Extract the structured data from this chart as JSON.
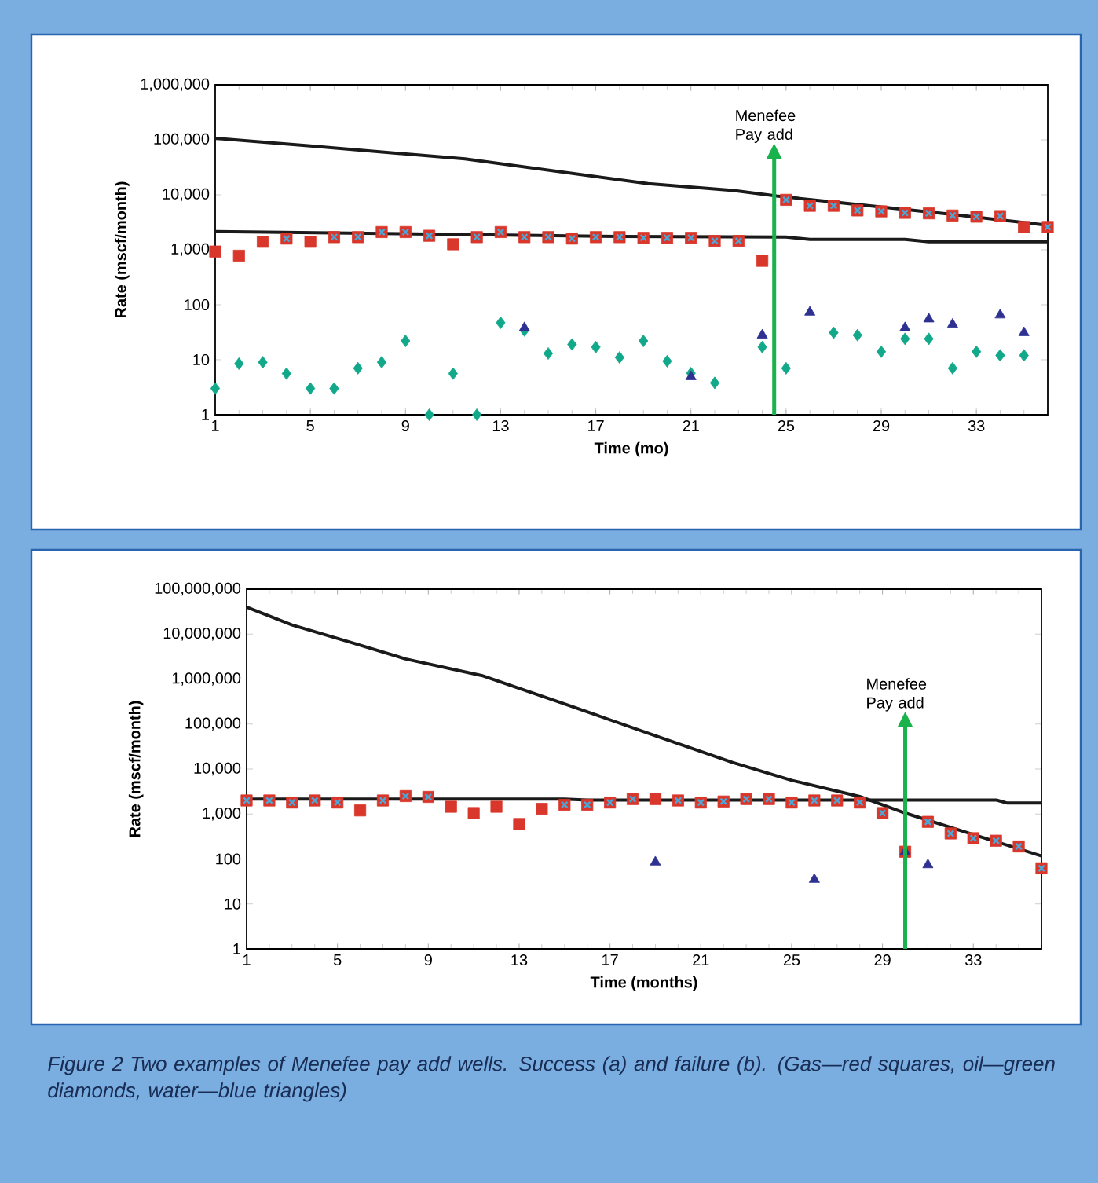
{
  "chart_data": [
    {
      "type": "scatter",
      "xlabel": "Time (mo)",
      "ylabel": "Rate (mscf/month)",
      "log": "y",
      "x": [
        1,
        2,
        3,
        4,
        5,
        6,
        7,
        8,
        9,
        10,
        11,
        12,
        13,
        14,
        15,
        16,
        17,
        18,
        19,
        20,
        21,
        22,
        23,
        24,
        25,
        26,
        27,
        28,
        29,
        30,
        31,
        32,
        33,
        34,
        35,
        36
      ],
      "xlim": [
        1,
        36
      ],
      "xticks": [
        1,
        5,
        9,
        13,
        17,
        21,
        25,
        29,
        33
      ],
      "ylim": [
        1,
        1000000
      ],
      "yticks": [
        1,
        10,
        100,
        {
          "value": 1000,
          "label": "1,000"
        },
        {
          "value": 10000,
          "label": "10,000"
        },
        {
          "value": 100000,
          "label": "100,000"
        },
        {
          "value": 1000000,
          "label": "1,000,000"
        }
      ],
      "series": [
        {
          "type": "line",
          "marker": "none",
          "color": "#1a1a1a",
          "x": [
            1,
            4.9,
            11.5,
            19.2,
            22.8,
            24.6,
            32,
            36
          ],
          "values": [
            107000,
            78000,
            45000,
            16000,
            12000,
            9500,
            4400,
            2800
          ]
        },
        {
          "type": "line",
          "marker": "none",
          "color": "#1a1a1a",
          "x": [
            1,
            18,
            25,
            26,
            30,
            31,
            36
          ],
          "values": [
            2150,
            1750,
            1700,
            1550,
            1550,
            1400,
            1400
          ]
        },
        {
          "marker": "square",
          "color": "#d9372b",
          "values": [
            930,
            780,
            1400,
            1600,
            1400,
            1700,
            1700,
            2100,
            2100,
            1800,
            1260,
            1700,
            2100,
            1700,
            1700,
            1600,
            1700,
            1700,
            1650,
            1650,
            1650,
            1450,
            1450,
            630,
            8100,
            6300,
            6300,
            5200,
            5000,
            4700,
            4600,
            4200,
            4000,
            4100,
            2600,
            2600
          ]
        },
        {
          "marker": "cross",
          "color": "#4aa8d8",
          "values": [
            null,
            null,
            null,
            1600,
            null,
            1700,
            1700,
            2100,
            2100,
            1800,
            null,
            1700,
            2100,
            1700,
            1700,
            1600,
            1700,
            1700,
            1650,
            1650,
            1650,
            1450,
            1450,
            null,
            8100,
            6300,
            6300,
            5200,
            5000,
            4700,
            4600,
            4200,
            4000,
            4100,
            null,
            2600
          ]
        },
        {
          "marker": "diamond",
          "color": "#12a88a",
          "values": [
            3,
            8.5,
            9,
            5.6,
            3,
            3,
            7,
            9,
            22,
            1,
            5.6,
            1,
            47,
            34,
            13,
            19,
            17,
            11,
            22,
            9.4,
            5.7,
            3.8,
            null,
            17,
            7,
            null,
            31,
            28,
            14,
            24,
            24,
            7,
            14,
            12,
            12,
            null
          ]
        },
        {
          "marker": "triangle",
          "color": "#2e3192",
          "values": [
            null,
            null,
            null,
            null,
            null,
            null,
            null,
            null,
            null,
            null,
            null,
            null,
            null,
            38,
            null,
            null,
            null,
            null,
            null,
            null,
            4.9,
            null,
            null,
            28,
            null,
            73,
            null,
            null,
            null,
            38,
            55,
            44,
            null,
            65,
            31,
            null
          ]
        }
      ],
      "ref_lines": [
        {
          "axis": "x",
          "value": 24.5,
          "label": "Menefee Pay add",
          "color": "#1ab24c"
        }
      ]
    },
    {
      "type": "scatter",
      "xlabel": "Time (months)",
      "ylabel": "Rate (mscf/month)",
      "log": "y",
      "x": [
        1,
        2,
        3,
        4,
        5,
        6,
        7,
        8,
        9,
        10,
        11,
        12,
        13,
        14,
        15,
        16,
        17,
        18,
        19,
        20,
        21,
        22,
        23,
        24,
        25,
        26,
        27,
        28,
        29,
        30,
        31,
        32,
        33,
        34,
        35,
        36
      ],
      "xlim": [
        1,
        36
      ],
      "xticks": [
        1,
        5,
        9,
        13,
        17,
        21,
        25,
        29,
        33
      ],
      "ylim": [
        1,
        100000000
      ],
      "yticks": [
        1,
        10,
        100,
        {
          "value": 1000,
          "label": "1,000"
        },
        {
          "value": 10000,
          "label": "10,000"
        },
        {
          "value": 100000,
          "label": "100,000"
        },
        {
          "value": 1000000,
          "label": "1,000,000"
        },
        {
          "value": 10000000,
          "label": "10,000,000"
        },
        {
          "value": 100000000,
          "label": "100,000,000"
        }
      ],
      "series": [
        {
          "type": "line",
          "marker": "none",
          "color": "#1a1a1a",
          "x": [
            1,
            3,
            5.6,
            8,
            11.35,
            15,
            19,
            22.4,
            25,
            28,
            30,
            33,
            36
          ],
          "values": [
            40000000,
            16000000,
            6500000,
            2800000,
            1200000,
            280000,
            55000,
            14000,
            5600,
            2450,
            1050,
            350,
            117
          ]
        },
        {
          "type": "line",
          "marker": "none",
          "color": "#1a1a1a",
          "x": [
            1,
            15,
            16,
            34,
            34.5,
            36
          ],
          "values": [
            2150,
            2150,
            2050,
            2050,
            1750,
            1750
          ]
        },
        {
          "marker": "square",
          "color": "#d9372b",
          "values": [
            2000,
            2000,
            1800,
            2000,
            1800,
            1200,
            2000,
            2500,
            2400,
            1450,
            1050,
            1450,
            600,
            1300,
            1600,
            1600,
            1800,
            2150,
            2150,
            2000,
            1800,
            1900,
            2150,
            2150,
            1800,
            2000,
            2000,
            1800,
            1050,
            145,
            670,
            370,
            290,
            255,
            190,
            62
          ]
        },
        {
          "marker": "cross",
          "color": "#4aa8d8",
          "values": [
            2000,
            2000,
            1800,
            2000,
            1800,
            null,
            2000,
            2500,
            2400,
            null,
            null,
            null,
            null,
            null,
            1600,
            1600,
            1800,
            2150,
            null,
            2000,
            1800,
            1900,
            2150,
            2150,
            1800,
            2000,
            2000,
            1800,
            1050,
            null,
            670,
            370,
            290,
            255,
            190,
            62
          ]
        },
        {
          "marker": "triangle",
          "color": "#2e3192",
          "values": [
            null,
            null,
            null,
            null,
            null,
            null,
            null,
            null,
            null,
            null,
            null,
            null,
            null,
            null,
            null,
            null,
            null,
            null,
            85,
            null,
            null,
            null,
            null,
            null,
            null,
            35,
            null,
            null,
            null,
            145,
            74,
            null,
            null,
            null,
            null,
            null
          ]
        }
      ],
      "ref_lines": [
        {
          "axis": "x",
          "value": 30,
          "label": "Menefee Pay add",
          "color": "#1ab24c"
        }
      ],
      "annotations": [
        "Figure 2 Two examples of Menefee pay add wells. Success (a) and failure (b). (Gas—red squares, oil—green diamonds, water—blue triangles)"
      ]
    }
  ]
}
